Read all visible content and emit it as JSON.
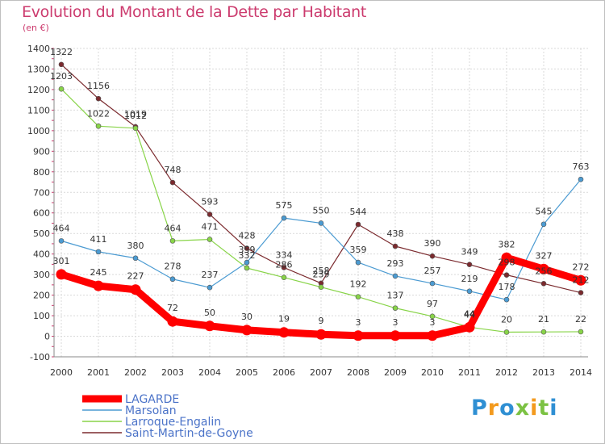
{
  "title": "Evolution du Montant de la Dette par Habitant",
  "unit": "(en €)",
  "logo": [
    "P",
    "r",
    "o",
    "x",
    "i",
    "t",
    "i"
  ],
  "chart_data": {
    "type": "line",
    "x": [
      2000,
      2001,
      2002,
      2003,
      2004,
      2005,
      2006,
      2007,
      2008,
      2009,
      2010,
      2011,
      2012,
      2013,
      2014
    ],
    "ylim": [
      -100,
      1400
    ],
    "yticks": [
      -100,
      0,
      100,
      200,
      300,
      400,
      500,
      600,
      700,
      800,
      900,
      1000,
      1100,
      1200,
      1300,
      1400
    ],
    "grid": true,
    "legend_position": "bottom-left",
    "series": [
      {
        "name": "LAGARDE",
        "color": "#ff0000",
        "values": [
          301,
          245,
          227,
          72,
          50,
          30,
          19,
          9,
          3,
          3,
          3,
          44,
          382,
          327,
          272
        ]
      },
      {
        "name": "Marsolan",
        "color": "#4b9bd2",
        "values": [
          464,
          411,
          380,
          278,
          237,
          359,
          575,
          550,
          359,
          293,
          257,
          219,
          178,
          545,
          763
        ]
      },
      {
        "name": "Larroque-Engalin",
        "color": "#88d448",
        "values": [
          1203,
          1022,
          1012,
          464,
          471,
          332,
          286,
          239,
          192,
          137,
          97,
          44,
          20,
          21,
          22
        ]
      },
      {
        "name": "Saint-Martin-de-Goyne",
        "color": "#7b2a2e",
        "values": [
          1322,
          1156,
          1019,
          748,
          593,
          428,
          334,
          258,
          544,
          438,
          390,
          349,
          298,
          256,
          212
        ]
      }
    ]
  }
}
